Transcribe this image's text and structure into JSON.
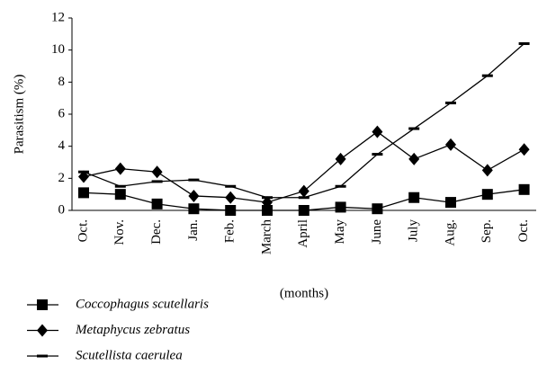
{
  "chart_data": {
    "type": "line",
    "y_label": "Parasitism (%)",
    "x_label": "(months)",
    "categories": [
      "Oct.",
      "Nov.",
      "Dec.",
      "Jan.",
      "Feb.",
      "March",
      "April",
      "May",
      "June",
      "July",
      "Aug.",
      "Sep.",
      "Oct."
    ],
    "series": [
      {
        "name": "Coccophagus scutellaris",
        "color": "#000000",
        "marker": "square",
        "values": [
          1.1,
          1.0,
          0.4,
          0.1,
          0.0,
          0.0,
          0.0,
          0.2,
          0.1,
          0.8,
          0.5,
          1.0,
          1.3
        ]
      },
      {
        "name": "Metaphycus zebratus",
        "color": "#000000",
        "marker": "diamond",
        "values": [
          2.1,
          2.6,
          2.4,
          0.9,
          0.8,
          0.5,
          1.2,
          3.2,
          4.9,
          3.2,
          4.1,
          2.5,
          3.8
        ]
      },
      {
        "name": "Scutellista caerulea",
        "color": "#000000",
        "marker": "dash",
        "values": [
          2.4,
          1.5,
          1.8,
          1.9,
          1.5,
          0.8,
          0.8,
          1.5,
          3.5,
          5.1,
          6.7,
          8.4,
          10.4
        ]
      }
    ],
    "ylim": [
      0,
      12
    ],
    "yticks": [
      0,
      2,
      4,
      6,
      8,
      10,
      12
    ],
    "grid": false
  }
}
